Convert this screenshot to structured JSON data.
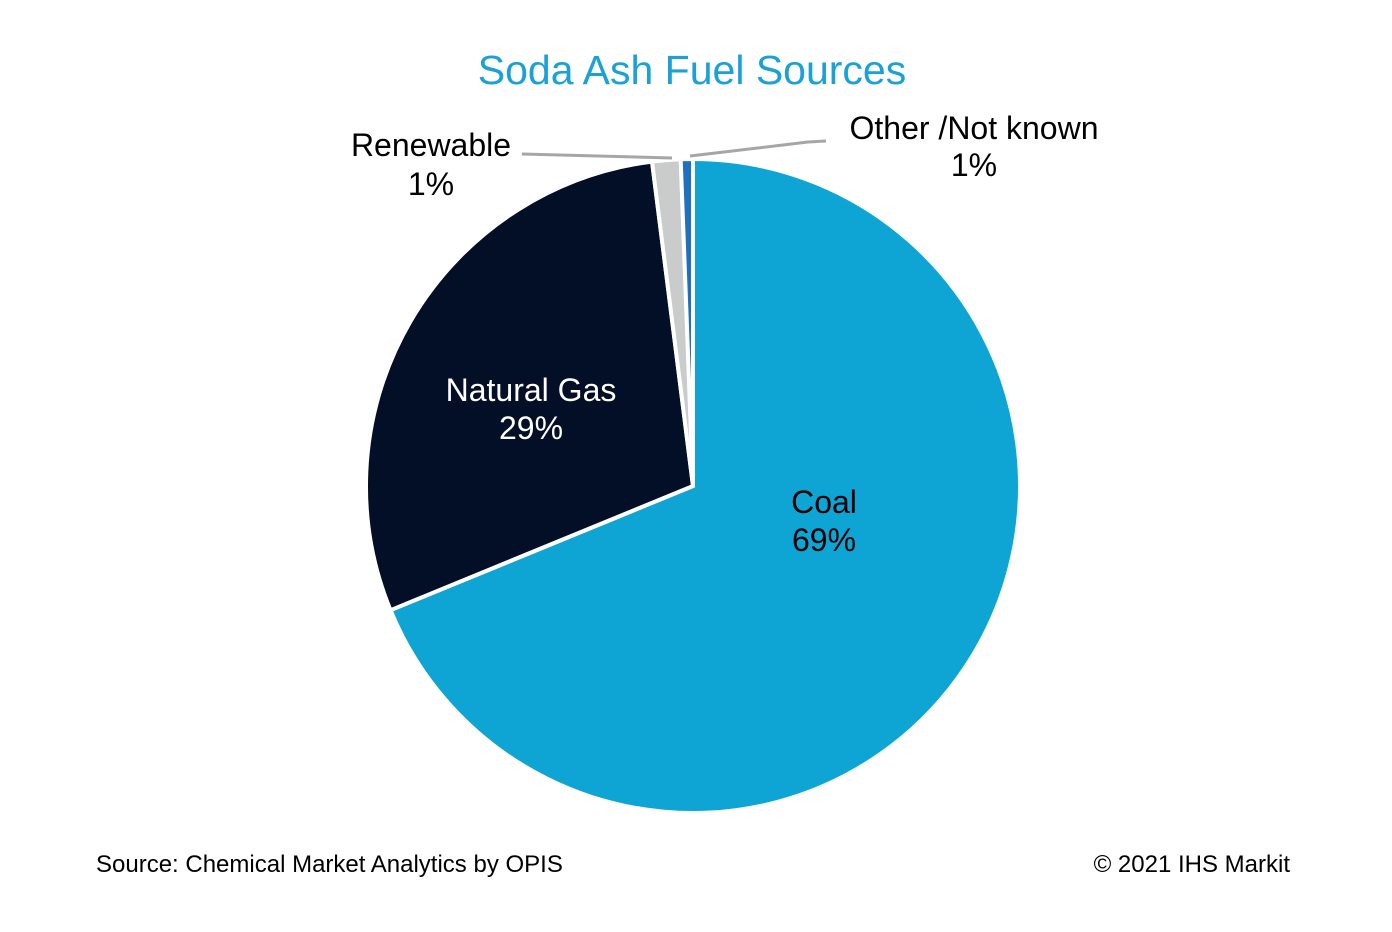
{
  "chart_data": {
    "type": "pie",
    "title": "Soda Ash Fuel Sources",
    "slices": [
      {
        "label": "Coal",
        "value_label": "69%",
        "value": 68.8,
        "color": "#0ea5d5"
      },
      {
        "label": "Natural Gas",
        "value_label": "29%",
        "value": 29.2,
        "color": "#020f27"
      },
      {
        "label": "Renewable",
        "value_label": "1%",
        "value": 1.4,
        "color": "#c9cccb"
      },
      {
        "label": "Other /Not known",
        "value_label": "1%",
        "value": 0.6,
        "color": "#1f6fc2"
      }
    ],
    "start_angle_deg": 0,
    "direction": "clockwise",
    "leader_line_color": "#a6a6a6"
  },
  "footer": {
    "source": "Source: Chemical Market Analytics by OPIS",
    "copyright": "© 2021 IHS Markit"
  }
}
